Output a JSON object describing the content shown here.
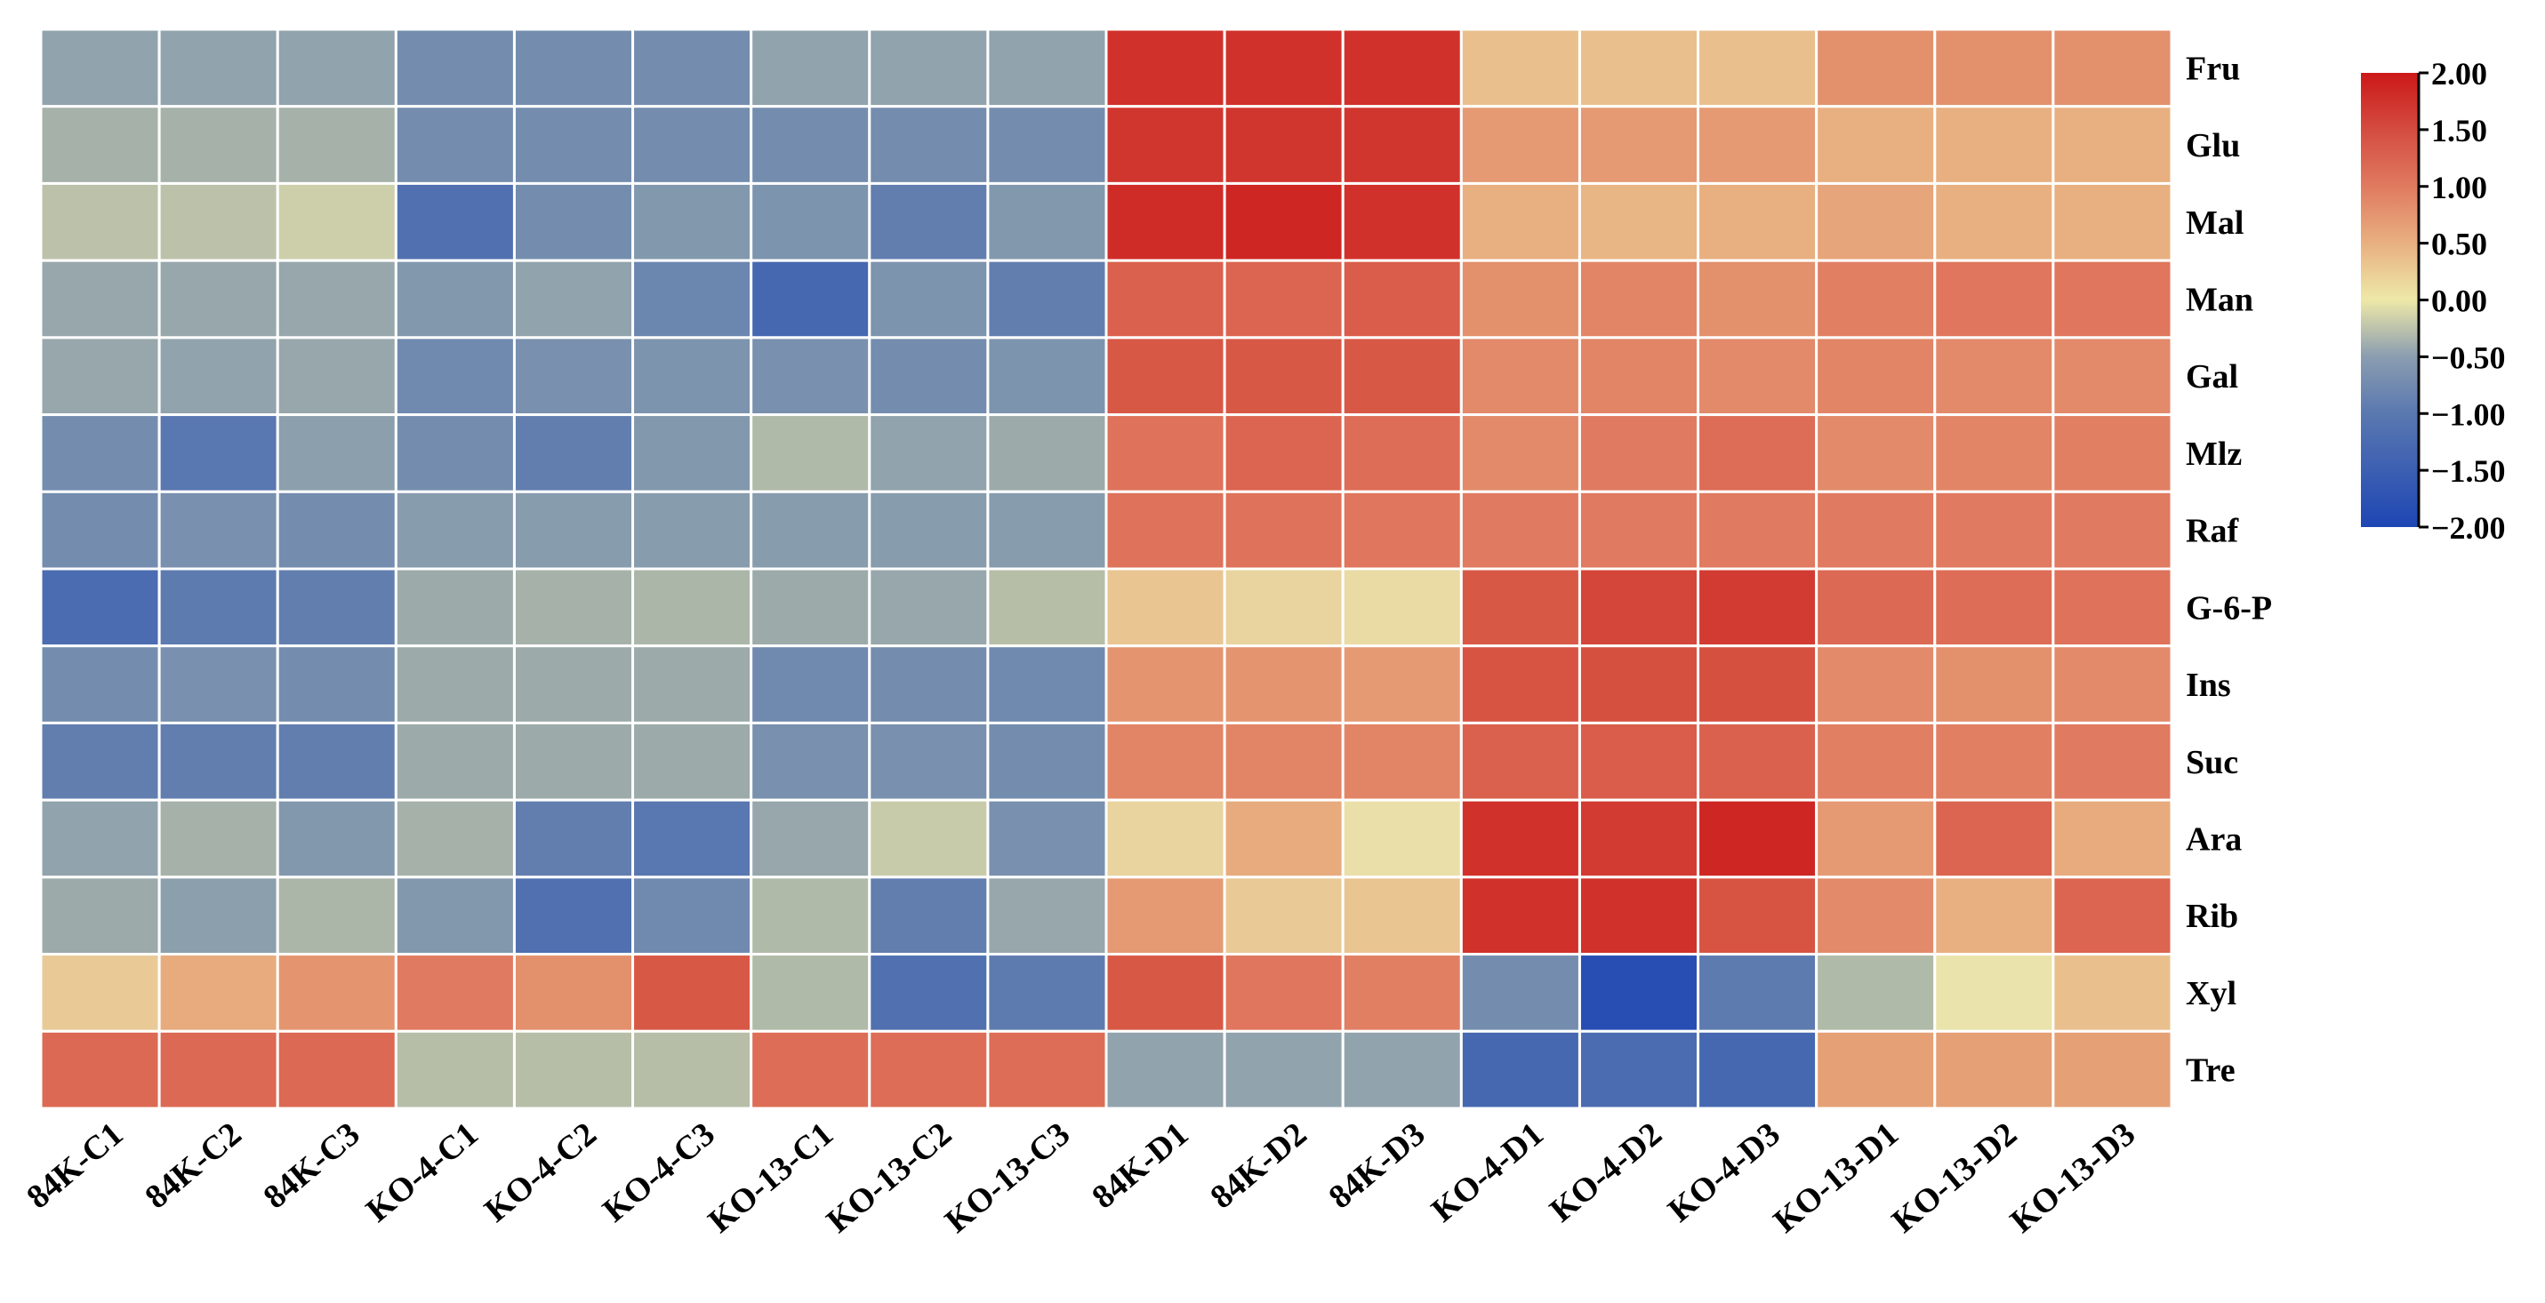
{
  "chart_data": {
    "type": "heatmap",
    "title": "",
    "columns": [
      "84K-C1",
      "84K-C2",
      "84K-C3",
      "KO-4-C1",
      "KO-4-C2",
      "KO-4-C3",
      "KO-13-C1",
      "KO-13-C2",
      "KO-13-C3",
      "84K-D1",
      "84K-D2",
      "84K-D3",
      "KO-4-D1",
      "KO-4-D2",
      "KO-4-D3",
      "KO-13-D1",
      "KO-13-D2",
      "KO-13-D3"
    ],
    "rows": [
      "Fru",
      "Glu",
      "Mal",
      "Man",
      "Gal",
      "Mlz",
      "Raf",
      "G-6-P",
      "Ins",
      "Suc",
      "Ara",
      "Rib",
      "Xyl",
      "Tre"
    ],
    "values": [
      [
        -0.8,
        -0.8,
        -0.8,
        -1.1,
        -1.1,
        -1.1,
        -0.8,
        -0.8,
        -0.8,
        1.8,
        1.8,
        1.8,
        0.35,
        0.35,
        0.35,
        0.8,
        0.8,
        0.8
      ],
      [
        -0.6,
        -0.6,
        -0.6,
        -1.1,
        -1.1,
        -1.1,
        -1.1,
        -1.1,
        -1.1,
        1.75,
        1.75,
        1.75,
        0.7,
        0.7,
        0.7,
        0.5,
        0.5,
        0.5
      ],
      [
        -0.4,
        -0.4,
        -0.25,
        -1.5,
        -1.1,
        -0.95,
        -1.0,
        -1.3,
        -0.95,
        1.85,
        1.9,
        1.8,
        0.5,
        0.45,
        0.5,
        0.6,
        0.5,
        0.5
      ],
      [
        -0.75,
        -0.75,
        -0.75,
        -0.95,
        -0.8,
        -1.2,
        -1.6,
        -1.0,
        -1.3,
        1.3,
        1.25,
        1.35,
        0.8,
        0.9,
        0.8,
        0.95,
        1.05,
        1.05
      ],
      [
        -0.75,
        -0.8,
        -0.75,
        -1.15,
        -1.05,
        -1.0,
        -1.05,
        -1.1,
        -1.0,
        1.4,
        1.4,
        1.4,
        0.85,
        0.9,
        0.85,
        0.9,
        0.85,
        0.85
      ],
      [
        -1.1,
        -1.4,
        -0.85,
        -1.1,
        -1.3,
        -0.95,
        -0.5,
        -0.8,
        -0.7,
        1.1,
        1.25,
        1.15,
        0.85,
        1.0,
        1.15,
        0.85,
        0.9,
        0.95
      ],
      [
        -1.1,
        -1.05,
        -1.1,
        -0.9,
        -0.9,
        -0.9,
        -0.9,
        -0.9,
        -0.9,
        1.1,
        1.1,
        1.05,
        1.0,
        1.0,
        1.0,
        1.0,
        1.0,
        1.0
      ],
      [
        -1.55,
        -1.35,
        -1.3,
        -0.7,
        -0.6,
        -0.55,
        -0.7,
        -0.75,
        -0.45,
        0.3,
        0.15,
        0.1,
        1.4,
        1.6,
        1.7,
        1.2,
        1.15,
        1.1
      ],
      [
        -1.1,
        -1.05,
        -1.1,
        -0.7,
        -0.7,
        -0.7,
        -1.15,
        -1.1,
        -1.15,
        0.75,
        0.75,
        0.7,
        1.45,
        1.5,
        1.5,
        0.85,
        0.8,
        0.85
      ],
      [
        -1.3,
        -1.3,
        -1.3,
        -0.7,
        -0.7,
        -0.7,
        -1.05,
        -1.05,
        -1.1,
        0.9,
        0.9,
        0.9,
        1.3,
        1.35,
        1.3,
        0.95,
        0.95,
        1.0
      ],
      [
        -0.8,
        -0.6,
        -0.95,
        -0.6,
        -1.3,
        -1.4,
        -0.75,
        -0.3,
        -1.05,
        0.15,
        0.55,
        0.05,
        1.8,
        1.7,
        1.9,
        0.7,
        1.25,
        0.55
      ],
      [
        -0.7,
        -0.85,
        -0.55,
        -0.95,
        -1.5,
        -1.15,
        -0.5,
        -1.3,
        -0.75,
        0.7,
        0.25,
        0.3,
        1.8,
        1.8,
        1.45,
        0.85,
        0.5,
        1.25
      ],
      [
        0.25,
        0.55,
        0.75,
        1.0,
        0.8,
        1.4,
        -0.5,
        -1.5,
        -1.35,
        1.4,
        1.05,
        0.95,
        -1.1,
        -1.9,
        -1.35,
        -0.5,
        0.0,
        0.35
      ],
      [
        1.2,
        1.2,
        1.2,
        -0.45,
        -0.45,
        -0.45,
        1.15,
        1.15,
        1.15,
        -0.8,
        -0.8,
        -0.8,
        -1.6,
        -1.55,
        -1.6,
        0.65,
        0.65,
        0.65
      ]
    ],
    "color_range": [
      -2,
      2
    ],
    "colorbar": {
      "ticks": [
        "2.00",
        "1.50",
        "1.00",
        "0.50",
        "0.00",
        "−0.50",
        "−1.00",
        "−1.50",
        "−2.00"
      ],
      "tick_values": [
        2,
        1.5,
        1,
        0.5,
        0,
        -0.5,
        -1,
        -1.5,
        -2
      ],
      "colors": {
        "low": "#1e46b4",
        "mid": "#eee8a8",
        "high": "#cc1818"
      },
      "placement": "right"
    }
  }
}
